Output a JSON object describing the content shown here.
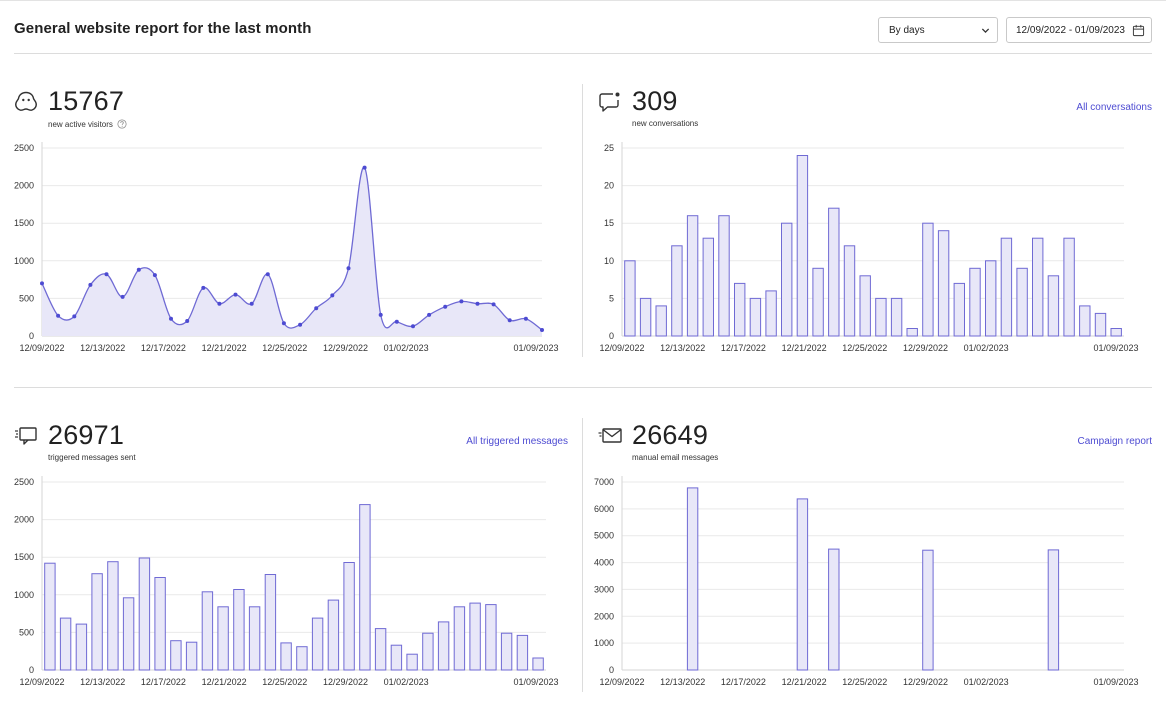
{
  "header": {
    "title": "General website report for the last month",
    "period_select": {
      "value": "By days"
    },
    "date_range": {
      "value": "12/09/2022 - 01/09/2023"
    }
  },
  "panels": [
    {
      "id": "visitors",
      "icon": "ghost-icon",
      "value": "15767",
      "label": "new active visitors",
      "link": ""
    },
    {
      "id": "conversations",
      "icon": "chat-bubble-icon",
      "value": "309",
      "label": "new conversations",
      "link": "All conversations"
    },
    {
      "id": "triggered",
      "icon": "monitor-message-icon",
      "value": "26971",
      "label": "triggered messages sent",
      "link": "All triggered messages"
    },
    {
      "id": "email",
      "icon": "envelope-icon",
      "value": "26649",
      "label": "manual email messages",
      "link": "Campaign report"
    }
  ],
  "colors": {
    "accent": "#6f6ad4",
    "fill": "#e8e7f8",
    "link": "#4d4bd2"
  },
  "chart_data": [
    {
      "panel": "visitors",
      "type": "area",
      "x_ticks": [
        "12/09/2022",
        "12/13/2022",
        "12/17/2022",
        "12/21/2022",
        "12/25/2022",
        "12/29/2022",
        "01/02/2023",
        "01/09/2023"
      ],
      "y_ticks": [
        0,
        500,
        1000,
        1500,
        2000,
        2500
      ],
      "ylim": [
        0,
        2500
      ],
      "values": [
        700,
        270,
        260,
        680,
        820,
        520,
        880,
        810,
        230,
        200,
        640,
        430,
        550,
        430,
        820,
        170,
        150,
        370,
        540,
        900,
        2240,
        280,
        190,
        130,
        280,
        390,
        460,
        430,
        420,
        210,
        230,
        80
      ],
      "grid": true
    },
    {
      "panel": "conversations",
      "type": "bar",
      "x_ticks": [
        "12/09/2022",
        "12/13/2022",
        "12/17/2022",
        "12/21/2022",
        "12/25/2022",
        "12/29/2022",
        "01/02/2023",
        "01/09/2023"
      ],
      "y_ticks": [
        0,
        5,
        10,
        15,
        20,
        25
      ],
      "ylim": [
        0,
        25
      ],
      "values": [
        10,
        5,
        4,
        12,
        16,
        13,
        16,
        7,
        5,
        6,
        15,
        24,
        9,
        17,
        12,
        8,
        5,
        5,
        1,
        15,
        14,
        7,
        9,
        10,
        13,
        9,
        13,
        8,
        13,
        4,
        3,
        1
      ],
      "grid": true
    },
    {
      "panel": "triggered",
      "type": "bar",
      "x_ticks": [
        "12/09/2022",
        "12/13/2022",
        "12/17/2022",
        "12/21/2022",
        "12/25/2022",
        "12/29/2022",
        "01/02/2023",
        "01/09/2023"
      ],
      "y_ticks": [
        0,
        500,
        1000,
        1500,
        2000,
        2500
      ],
      "ylim": [
        0,
        2500
      ],
      "values": [
        1420,
        690,
        610,
        1280,
        1440,
        960,
        1490,
        1230,
        390,
        370,
        1040,
        840,
        1070,
        840,
        1270,
        360,
        310,
        690,
        930,
        1430,
        2200,
        550,
        330,
        210,
        490,
        640,
        840,
        890,
        870,
        490,
        460,
        160
      ],
      "grid": true
    },
    {
      "panel": "email",
      "type": "bar",
      "x_ticks": [
        "12/09/2022",
        "12/13/2022",
        "12/17/2022",
        "12/21/2022",
        "12/25/2022",
        "12/29/2022",
        "01/02/2023",
        "01/09/2023"
      ],
      "y_ticks": [
        0,
        1000,
        2000,
        3000,
        4000,
        5000,
        6000,
        7000
      ],
      "ylim": [
        0,
        7000
      ],
      "values": [
        0,
        0,
        0,
        0,
        6780,
        0,
        0,
        0,
        0,
        0,
        0,
        6370,
        0,
        4500,
        0,
        0,
        0,
        0,
        0,
        4460,
        0,
        0,
        0,
        0,
        0,
        0,
        0,
        4470,
        0,
        0,
        0,
        0
      ],
      "grid": true
    }
  ]
}
